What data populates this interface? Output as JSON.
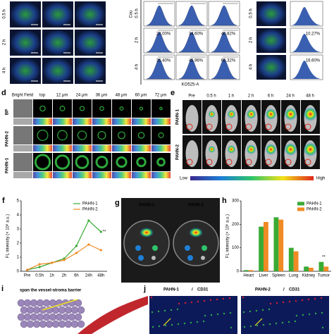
{
  "panel_top": {
    "left_rows": [
      "0.5 h",
      "2 h",
      "4 h"
    ],
    "flow_ylabel": "Cou",
    "flow_rows": [
      "0.5 h",
      "2 h",
      "4 h"
    ],
    "flow_pcts": [
      [
        "23.00%",
        "34.60%",
        "40.82%"
      ],
      [
        "35.40%",
        "45.96%",
        "65.32%"
      ]
    ],
    "flow_xlabel": "KO525-A",
    "right_rows": [
      "0.5 h",
      "2 h",
      "4 h"
    ],
    "right_pcts": [
      "10.27%",
      "16.60%"
    ]
  },
  "panel_d": {
    "letter": "d",
    "columns": [
      "Bright Field",
      "top",
      "12 μm",
      "24 μm",
      "36 μm",
      "48 μm",
      "60 μm",
      "72 μm"
    ],
    "rows": [
      "BP",
      "PAHN-2",
      "PAHN-1"
    ]
  },
  "panel_e": {
    "letter": "e",
    "columns": [
      "Pre",
      "0.5 h",
      "1 h",
      "2 h",
      "6 h",
      "24 h",
      "48 h"
    ],
    "rows": [
      "PAHN-1",
      "PAHN-2"
    ],
    "scale_low": "Low",
    "scale_high": "High"
  },
  "panel_g": {
    "letter": "g",
    "labels": [
      "PAHN-1",
      "PAHN-2"
    ]
  },
  "panel_i": {
    "letter": "i",
    "caption": "span the vessel-stroma barrier"
  },
  "panel_j": {
    "letter": "j",
    "sep": "/",
    "left": [
      "PAHN-1",
      "CD31"
    ],
    "right": [
      "PAHN-2",
      "CD31"
    ]
  },
  "chart_data": [
    {
      "type": "line",
      "panel_label": "f",
      "ylabel": "FL intensity (× 10⁸ a.u.)",
      "categories": [
        "Pre",
        "0.5h",
        "1h",
        "2h",
        "6h",
        "24h",
        "48h"
      ],
      "series": [
        {
          "name": "PAHN-1",
          "color": "#3aaa35",
          "values": [
            0.1,
            0.3,
            0.6,
            0.9,
            1.8,
            3.6,
            2.8
          ]
        },
        {
          "name": "PAHN-2",
          "color": "#f08a24",
          "values": [
            0.1,
            0.5,
            0.6,
            0.8,
            1.3,
            1.9,
            1.5
          ]
        }
      ],
      "ylim": [
        0,
        5
      ],
      "yticks": [
        0,
        1,
        2,
        3,
        4,
        5
      ],
      "annotations": [
        "**"
      ]
    },
    {
      "type": "bar",
      "panel_label": "h",
      "ylabel": "FL intensity (× 10⁶ a.u.)",
      "categories": [
        "Heart",
        "Liver",
        "Spleen",
        "Lung",
        "Kidney",
        "Tumor"
      ],
      "series": [
        {
          "name": "PAHN-1",
          "color": "#3aaa35",
          "values": [
            5,
            190,
            230,
            100,
            20,
            40
          ]
        },
        {
          "name": "PAHN-2",
          "color": "#f08a24",
          "values": [
            5,
            210,
            220,
            85,
            15,
            20
          ]
        }
      ],
      "ylim": [
        0,
        300
      ],
      "yticks": [
        0,
        100,
        200,
        300
      ],
      "annotations": [
        "**"
      ]
    }
  ]
}
